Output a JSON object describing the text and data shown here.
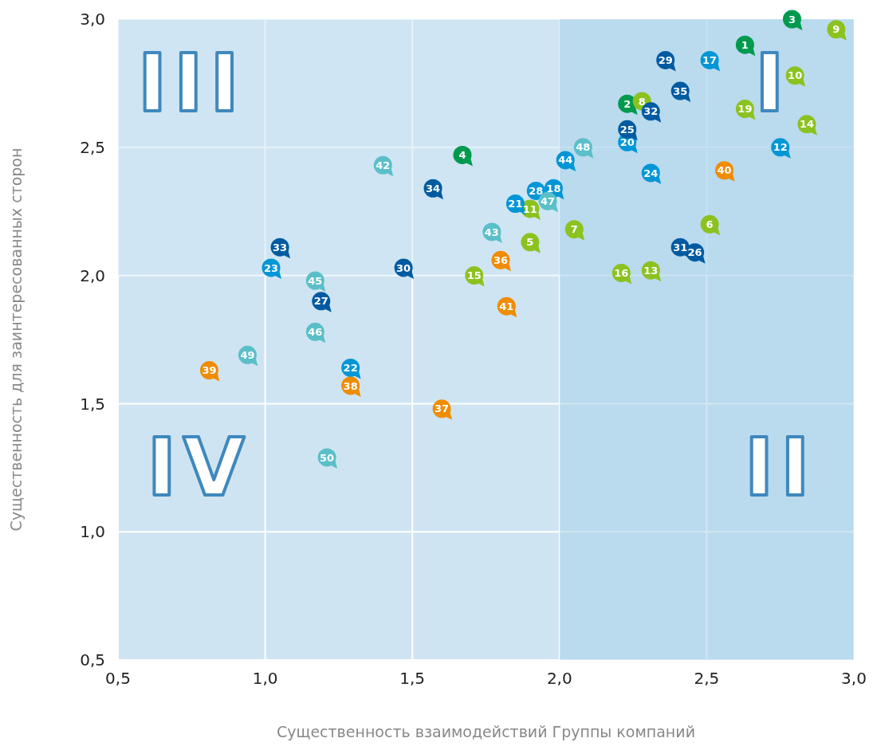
{
  "chart_data": {
    "type": "scatter",
    "xlabel": "Существенность взаимодействий Группы компаний",
    "ylabel": "Существенность для заинтересованных сторон",
    "xlim": [
      0.5,
      3.0
    ],
    "ylim": [
      0.5,
      3.0
    ],
    "xticks": [
      {
        "value": 0.5,
        "label": "0,5"
      },
      {
        "value": 1.0,
        "label": "1,0"
      },
      {
        "value": 1.5,
        "label": "1,5"
      },
      {
        "value": 2.0,
        "label": "2,0"
      },
      {
        "value": 2.5,
        "label": "2,5"
      },
      {
        "value": 3.0,
        "label": "3,0"
      }
    ],
    "yticks": [
      {
        "value": 0.5,
        "label": "0,5"
      },
      {
        "value": 1.0,
        "label": "1,0"
      },
      {
        "value": 1.5,
        "label": "1,5"
      },
      {
        "value": 2.0,
        "label": "2,0"
      },
      {
        "value": 2.5,
        "label": "2,5"
      },
      {
        "value": 3.0,
        "label": "3,0"
      }
    ],
    "grid": true,
    "legend": false,
    "marker": "circle",
    "bands": [
      {
        "axis": "y",
        "from": 2.0,
        "to": 3.0,
        "color": "#cfe5f3"
      },
      {
        "axis": "x",
        "from": 2.0,
        "to": 3.0,
        "color": "#a6cfea"
      }
    ],
    "annotations": [
      "I",
      "II",
      "III",
      "IV",
      {
        "text": "1",
        "x": 2.63,
        "y": 2.9
      },
      {
        "text": "2",
        "x": 2.23,
        "y": 2.67
      },
      {
        "text": "3",
        "x": 2.79,
        "y": 3.0
      },
      {
        "text": "4",
        "x": 1.67,
        "y": 2.47
      },
      {
        "text": "5",
        "x": 1.9,
        "y": 2.13
      },
      {
        "text": "6",
        "x": 2.51,
        "y": 2.2
      },
      {
        "text": "7",
        "x": 2.05,
        "y": 2.18
      },
      {
        "text": "8",
        "x": 2.28,
        "y": 2.68
      },
      {
        "text": "9",
        "x": 2.94,
        "y": 2.96
      },
      {
        "text": "10",
        "x": 2.8,
        "y": 2.78
      },
      {
        "text": "11",
        "x": 1.9,
        "y": 2.26
      },
      {
        "text": "12",
        "x": 2.75,
        "y": 2.5
      },
      {
        "text": "13",
        "x": 2.31,
        "y": 2.02
      },
      {
        "text": "14",
        "x": 2.84,
        "y": 2.59
      },
      {
        "text": "15",
        "x": 1.71,
        "y": 2.0
      },
      {
        "text": "16",
        "x": 2.21,
        "y": 2.01
      },
      {
        "text": "17",
        "x": 2.51,
        "y": 2.84
      },
      {
        "text": "18",
        "x": 1.98,
        "y": 2.34
      },
      {
        "text": "19",
        "x": 2.63,
        "y": 2.65
      },
      {
        "text": "20",
        "x": 2.23,
        "y": 2.52
      },
      {
        "text": "21",
        "x": 1.85,
        "y": 2.28
      },
      {
        "text": "22",
        "x": 1.29,
        "y": 1.64
      },
      {
        "text": "23",
        "x": 1.02,
        "y": 2.03
      },
      {
        "text": "24",
        "x": 2.31,
        "y": 2.4
      },
      {
        "text": "25",
        "x": 2.23,
        "y": 2.57
      },
      {
        "text": "26",
        "x": 2.46,
        "y": 2.09
      },
      {
        "text": "27",
        "x": 1.19,
        "y": 1.9
      },
      {
        "text": "28",
        "x": 1.92,
        "y": 2.33
      },
      {
        "text": "29",
        "x": 2.36,
        "y": 2.84
      },
      {
        "text": "30",
        "x": 1.47,
        "y": 2.03
      },
      {
        "text": "31",
        "x": 2.41,
        "y": 2.11
      },
      {
        "text": "32",
        "x": 2.31,
        "y": 2.64
      },
      {
        "text": "33",
        "x": 1.05,
        "y": 2.11
      },
      {
        "text": "34",
        "x": 1.57,
        "y": 2.34
      },
      {
        "text": "35",
        "x": 2.41,
        "y": 2.72
      },
      {
        "text": "36",
        "x": 1.8,
        "y": 2.06
      },
      {
        "text": "37",
        "x": 1.6,
        "y": 1.48
      },
      {
        "text": "38",
        "x": 1.29,
        "y": 1.57
      },
      {
        "text": "39",
        "x": 0.81,
        "y": 1.63
      },
      {
        "text": "40",
        "x": 2.56,
        "y": 2.41
      },
      {
        "text": "41",
        "x": 1.82,
        "y": 1.88
      },
      {
        "text": "42",
        "x": 1.4,
        "y": 2.43
      },
      {
        "text": "43",
        "x": 1.77,
        "y": 2.17
      },
      {
        "text": "44",
        "x": 2.02,
        "y": 2.45
      },
      {
        "text": "45",
        "x": 1.17,
        "y": 1.98
      },
      {
        "text": "46",
        "x": 1.17,
        "y": 1.78
      },
      {
        "text": "47",
        "x": 1.96,
        "y": 2.29
      },
      {
        "text": "48",
        "x": 2.08,
        "y": 2.5
      },
      {
        "text": "49",
        "x": 0.94,
        "y": 1.69
      },
      {
        "text": "50",
        "x": 1.21,
        "y": 1.29
      }
    ],
    "series": [
      {
        "color": "#009a4e",
        "x": [
          2.63,
          2.23,
          2.79,
          1.67
        ],
        "values": [
          2.9,
          2.67,
          3.0,
          2.47
        ]
      },
      {
        "color": "#8cc21f",
        "x": [
          1.9,
          2.51,
          2.05,
          2.28,
          2.94,
          2.8,
          1.9,
          2.31,
          2.84,
          1.71,
          2.21,
          2.63
        ],
        "values": [
          2.13,
          2.2,
          2.18,
          2.68,
          2.96,
          2.78,
          2.26,
          2.02,
          2.59,
          2.0,
          2.01,
          2.65
        ]
      },
      {
        "color": "#0096d6",
        "x": [
          2.75,
          2.51,
          1.98,
          2.23,
          1.85,
          1.29,
          1.02,
          2.31,
          1.92,
          2.02
        ],
        "values": [
          2.5,
          2.84,
          2.34,
          2.52,
          2.28,
          1.64,
          2.03,
          2.4,
          2.33,
          2.45
        ]
      },
      {
        "color": "#005ba1",
        "x": [
          2.23,
          2.46,
          1.19,
          2.36,
          1.47,
          2.41,
          2.31,
          1.05,
          1.57,
          2.41
        ],
        "values": [
          2.57,
          2.09,
          1.9,
          2.84,
          2.03,
          2.11,
          2.64,
          2.11,
          2.34,
          2.72
        ]
      },
      {
        "color": "#f08c00",
        "x": [
          1.8,
          1.6,
          1.29,
          0.81,
          2.56,
          1.82
        ],
        "values": [
          2.06,
          1.48,
          1.57,
          1.63,
          2.41,
          1.88
        ]
      },
      {
        "color": "#5bbfc9",
        "x": [
          1.4,
          1.77,
          1.17,
          1.17,
          1.96,
          2.08,
          0.94,
          1.21
        ],
        "values": [
          2.43,
          2.17,
          1.98,
          1.78,
          2.29,
          2.5,
          1.69,
          1.29
        ]
      }
    ]
  }
}
